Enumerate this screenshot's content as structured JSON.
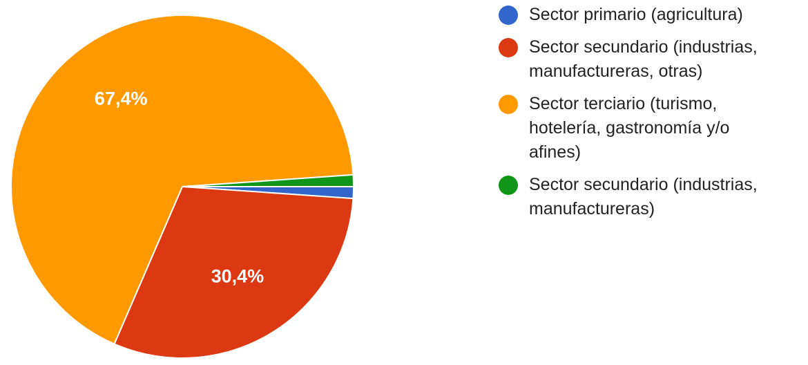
{
  "chart_data": {
    "type": "pie",
    "start_angle_deg": 90,
    "direction": "clockwise",
    "slices": [
      {
        "label": "Sector primario (agricultura)",
        "value": 1.1,
        "color": "#3366cc",
        "shown_label": ""
      },
      {
        "label": "Sector secundario (industrias,\nmanufactureras, otras)",
        "value": 30.4,
        "color": "#dc3912",
        "shown_label": "30,4%"
      },
      {
        "label": "Sector terciario (turismo,\nhotelería, gastronomía y/o\nafines)",
        "value": 67.4,
        "color": "#ff9900",
        "shown_label": "67,4%"
      },
      {
        "label": "Sector secundario (industrias,\nmanufactureras)",
        "value": 1.1,
        "color": "#109618",
        "shown_label": ""
      }
    ],
    "legend_position": "right"
  }
}
